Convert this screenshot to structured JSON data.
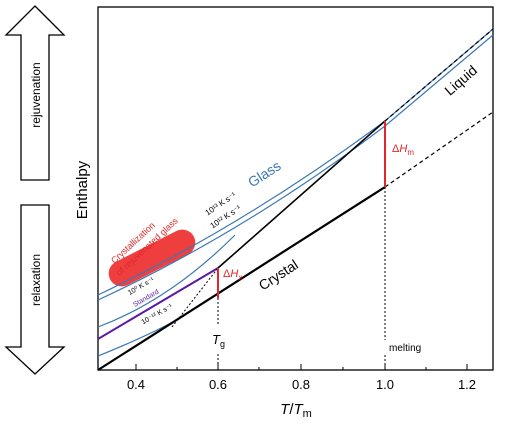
{
  "left_arrows": {
    "up_label": "rejuvenation",
    "down_label": "relaxation"
  },
  "axes": {
    "ylabel": "Enthalpy",
    "xlabel_main": "T",
    "xlabel_sep": "/",
    "xlabel_sub_base": "T",
    "xlabel_sub": "m",
    "xticks": [
      "0.4",
      "0.6",
      "0.8",
      "1.0",
      "1.2"
    ]
  },
  "curves": {
    "liquid": "Liquid",
    "glass": "Glass",
    "crystal": "Crystal"
  },
  "rates": {
    "r13": "10¹³ K s⁻¹",
    "r12": "10¹² K s⁻¹",
    "r0": "10⁰ K s⁻¹",
    "standard": "Standard",
    "rneg": "10⁻¹² K s⁻¹"
  },
  "annotations": {
    "crystallization_line1": "Crystallization",
    "crystallization_line2": "of rejuvenated glass",
    "dHm_delta": "Δ",
    "dHm_H": "H",
    "dHm_sub": "m",
    "dHx_delta": "Δ",
    "dHx_H": "H",
    "dHx_sub": "x",
    "tg_T": "T",
    "tg_sub": "g",
    "melting": "melting"
  },
  "colors": {
    "glass_blue": "#3a77b7",
    "annotation_red": "#e2262a",
    "blob_red": "#ee3e3e",
    "purple": "#5b1aa6",
    "black": "#000000"
  }
}
